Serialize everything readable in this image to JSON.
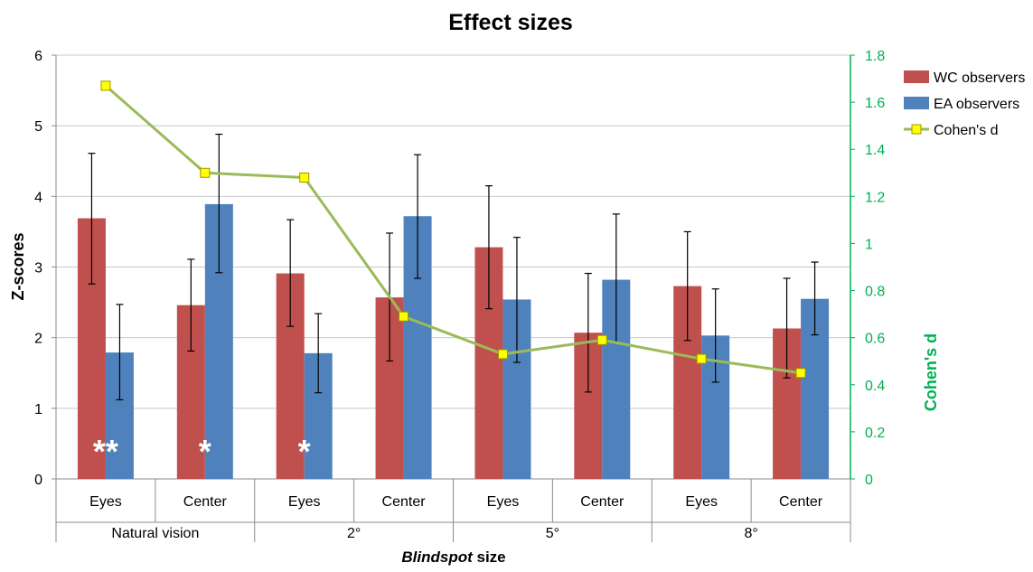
{
  "chart_data": {
    "type": "bar",
    "title": "Effect sizes",
    "xlabel_italic": "Blindspot",
    "xlabel_rest": " size",
    "ylabel": "Z-scores",
    "y2label": "Cohen's d",
    "ylim": [
      0,
      6
    ],
    "y2lim": [
      0,
      1.8
    ],
    "yticks": [
      "0",
      "1",
      "2",
      "3",
      "4",
      "5",
      "6"
    ],
    "y2ticks": [
      "0",
      "0.2",
      "0.4",
      "0.6",
      "0.8",
      "1",
      "1.2",
      "1.4",
      "1.6",
      "1.8"
    ],
    "categories": [
      "Eyes",
      "Center",
      "Eyes",
      "Center",
      "Eyes",
      "Center",
      "Eyes",
      "Center"
    ],
    "groups": [
      "Natural vision",
      "2°",
      "5°",
      "8°"
    ],
    "series": [
      {
        "name": "WC observers",
        "color": "#C0504D",
        "values": [
          3.69,
          2.46,
          2.91,
          2.57,
          3.28,
          2.07,
          2.73,
          2.13
        ],
        "err_low": [
          2.76,
          1.81,
          2.16,
          1.67,
          2.41,
          1.23,
          1.96,
          1.43
        ],
        "err_high": [
          4.61,
          3.11,
          3.67,
          3.48,
          4.15,
          2.91,
          3.5,
          2.84
        ]
      },
      {
        "name": "EA observers",
        "color": "#4F81BD",
        "values": [
          1.79,
          3.89,
          1.78,
          3.72,
          2.54,
          2.82,
          2.03,
          2.55
        ],
        "err_low": [
          1.12,
          2.92,
          1.22,
          2.84,
          1.65,
          1.93,
          1.37,
          2.04
        ],
        "err_high": [
          2.47,
          4.88,
          2.34,
          4.59,
          3.42,
          3.75,
          2.69,
          3.07
        ]
      }
    ],
    "line_series": {
      "name": "Cohen's d",
      "color": "#9BBB59",
      "marker_color": "#FFFF00",
      "values": [
        1.67,
        1.3,
        1.28,
        0.69,
        0.53,
        0.59,
        0.51,
        0.45
      ]
    },
    "annotations": [
      "**",
      "*",
      "*"
    ],
    "axis2_color": "#00B050",
    "legend_position": "right",
    "grid": true
  }
}
